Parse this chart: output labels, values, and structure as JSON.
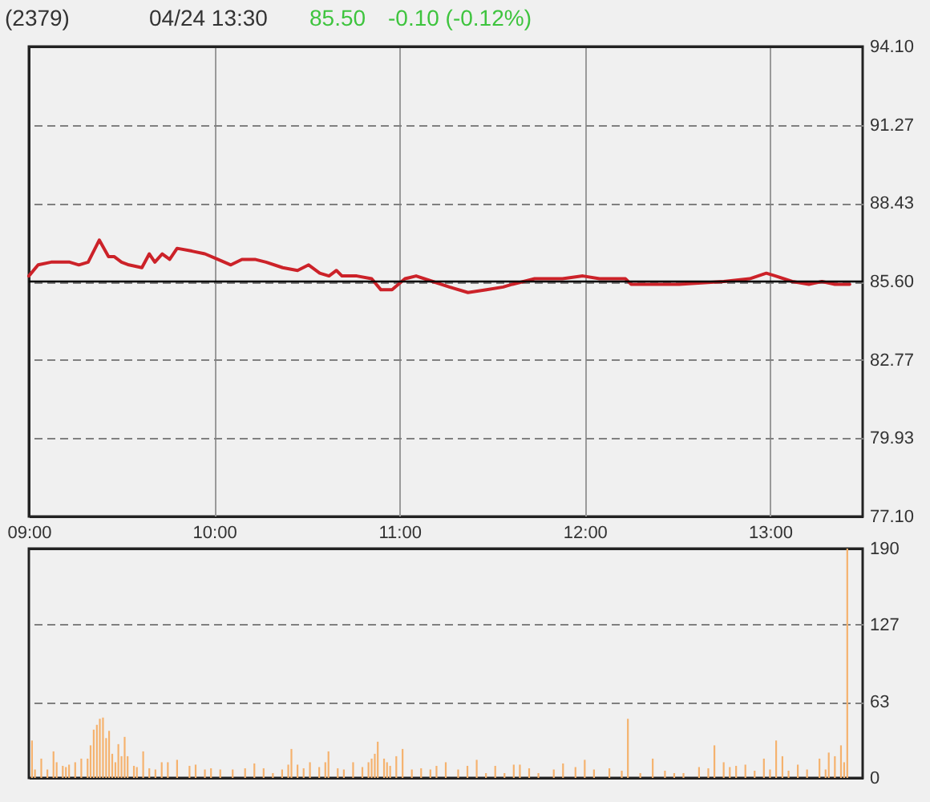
{
  "chart_data": [
    {
      "type": "line",
      "title": "(2379)",
      "subtitle": "04/24 13:30",
      "annotations": [
        "85.50",
        "-0.10 (-0.12%)"
      ],
      "x": [
        9,
        9.05,
        9.12,
        9.22,
        9.27,
        9.32,
        9.38,
        9.43,
        9.46,
        9.5,
        9.54,
        9.61,
        9.65,
        9.68,
        9.72,
        9.76,
        9.8,
        9.88,
        9.95,
        10.02,
        10.09,
        10.15,
        10.22,
        10.28,
        10.37,
        10.45,
        10.51,
        10.57,
        10.62,
        10.66,
        10.69,
        10.77,
        10.85,
        10.9,
        10.96,
        11.03,
        11.09,
        11.18,
        11.27,
        11.37,
        11.47,
        11.56,
        11.61,
        11.73,
        11.88,
        11.99,
        12.08,
        12.22,
        12.25,
        12.51,
        12.75,
        12.89,
        12.98,
        13.03,
        13.12,
        13.21,
        13.28,
        13.35,
        13.43
      ],
      "series": [
        {
          "color": "#cc2229",
          "values": [
            85.8,
            86.2,
            86.3,
            86.3,
            86.2,
            86.3,
            87.1,
            86.5,
            86.5,
            86.3,
            86.2,
            86.1,
            86.6,
            86.3,
            86.6,
            86.4,
            86.8,
            86.7,
            86.6,
            86.4,
            86.2,
            86.4,
            86.4,
            86.3,
            86.1,
            86.0,
            86.2,
            85.9,
            85.8,
            86.0,
            85.8,
            85.8,
            85.7,
            85.3,
            85.3,
            85.7,
            85.8,
            85.6,
            85.4,
            85.2,
            85.3,
            85.4,
            85.5,
            85.7,
            85.7,
            85.8,
            85.7,
            85.7,
            85.5,
            85.5,
            85.6,
            85.7,
            85.9,
            85.8,
            85.6,
            85.5,
            85.6,
            85.5,
            85.5
          ]
        }
      ],
      "xlim": [
        9,
        13.5
      ],
      "xticks": [
        {
          "value": 9,
          "label": "09:00"
        },
        {
          "value": 10,
          "label": "10:00"
        },
        {
          "value": 11,
          "label": "11:00"
        },
        {
          "value": 12,
          "label": "12:00"
        },
        {
          "value": 13,
          "label": "13:00"
        }
      ],
      "ylim": [
        77.1,
        94.1
      ],
      "yticks": [
        {
          "value": 77.1,
          "label": "77.10"
        },
        79.93,
        82.77,
        {
          "value": 85.6,
          "label": "85.60"
        },
        88.43,
        91.27,
        {
          "value": 94.1,
          "label": "94.10"
        }
      ],
      "grid": true,
      "ref_lines": [
        {
          "axis": "y",
          "value": 85.6,
          "color": "#000000"
        }
      ]
    },
    {
      "type": "bar",
      "color": "#f5b26e",
      "x": [
        9.017,
        9.033,
        9.067,
        9.1,
        9.133,
        9.15,
        9.183,
        9.2,
        9.217,
        9.25,
        9.283,
        9.317,
        9.333,
        9.35,
        9.367,
        9.383,
        9.4,
        9.417,
        9.433,
        9.45,
        9.467,
        9.483,
        9.5,
        9.517,
        9.533,
        9.567,
        9.583,
        9.617,
        9.65,
        9.683,
        9.717,
        9.75,
        9.8,
        9.867,
        9.9,
        9.95,
        9.983,
        10.033,
        10.1,
        10.167,
        10.217,
        10.267,
        10.317,
        10.367,
        10.4,
        10.417,
        10.45,
        10.483,
        10.517,
        10.567,
        10.6,
        10.617,
        10.667,
        10.7,
        10.75,
        10.8,
        10.833,
        10.85,
        10.867,
        10.883,
        10.917,
        10.933,
        10.95,
        10.983,
        11.017,
        11.067,
        11.117,
        11.167,
        11.2,
        11.25,
        11.317,
        11.367,
        11.417,
        11.467,
        11.517,
        11.567,
        11.617,
        11.65,
        11.7,
        11.75,
        11.833,
        11.883,
        11.95,
        12,
        12.05,
        12.133,
        12.2,
        12.233,
        12.3,
        12.367,
        12.433,
        12.483,
        12.533,
        12.617,
        12.667,
        12.7,
        12.75,
        12.783,
        12.817,
        12.867,
        12.917,
        12.967,
        13,
        13.033,
        13.067,
        13.1,
        13.15,
        13.2,
        13.267,
        13.3,
        13.317,
        13.35,
        13.383,
        13.4,
        13.417
      ],
      "values": [
        31,
        7,
        16,
        7,
        22,
        13,
        10,
        9,
        11,
        13,
        16,
        16,
        27,
        40,
        44,
        49,
        50,
        33,
        39,
        20,
        13,
        28,
        18,
        34,
        18,
        10,
        9,
        22,
        8,
        7,
        13,
        13,
        15,
        10,
        11,
        7,
        8,
        7,
        7,
        8,
        12,
        8,
        4,
        7,
        11,
        24,
        11,
        8,
        13,
        9,
        13,
        22,
        8,
        7,
        13,
        9,
        13,
        16,
        20,
        30,
        16,
        13,
        10,
        18,
        24,
        7,
        8,
        7,
        10,
        13,
        7,
        10,
        15,
        4,
        10,
        4,
        11,
        11,
        8,
        4,
        7,
        12,
        9,
        15,
        7,
        8,
        6,
        49,
        4,
        16,
        6,
        4,
        4,
        9,
        8,
        27,
        13,
        9,
        10,
        11,
        6,
        16,
        7,
        31,
        18,
        6,
        11,
        7,
        16,
        7,
        21,
        18,
        27,
        13,
        190
      ],
      "xlim": [
        9,
        13.5
      ],
      "ylim": [
        0,
        190
      ],
      "yticks": [
        0,
        63,
        127,
        190
      ],
      "grid": "y",
      "tick_labels": "y"
    }
  ]
}
